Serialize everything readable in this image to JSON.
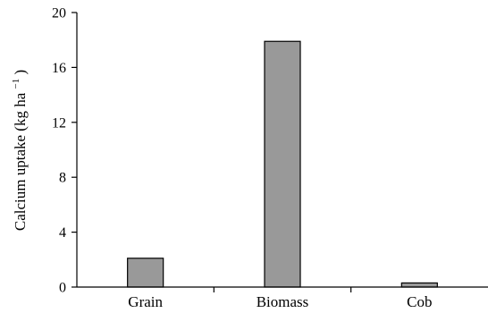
{
  "chart_data": {
    "type": "bar",
    "categories": [
      "Grain",
      "Biomass",
      "Cob"
    ],
    "values": [
      2.1,
      17.9,
      0.3
    ],
    "ylabel": "Calcium uptake (kg ha",
    "ylabel_superscript": "−1",
    "ylabel_suffix": ")",
    "ylim": [
      0,
      20
    ],
    "yticks": [
      0,
      4,
      8,
      12,
      16,
      20
    ],
    "grid": false,
    "legend": "none",
    "bar_color": "#999999",
    "bar_edge_color": "#000000"
  }
}
